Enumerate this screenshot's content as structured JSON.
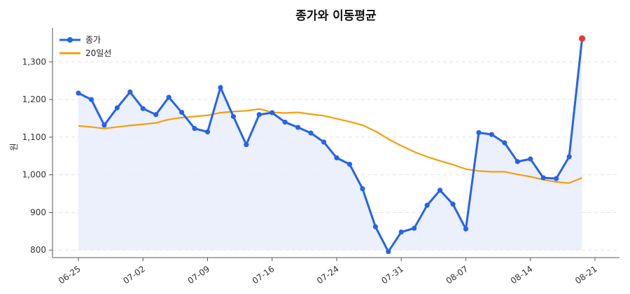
{
  "chart_data": {
    "type": "line",
    "title": "종가와 이동평균",
    "ylabel": "원",
    "xlabel": "",
    "ylim": [
      780,
      1390
    ],
    "yticks": [
      800,
      900,
      1000,
      1100,
      1200,
      1300
    ],
    "ytick_labels": [
      "800",
      "900",
      "1,000",
      "1,100",
      "1,200",
      "1,300"
    ],
    "x_tick_labels": [
      "06-25",
      "07-02",
      "07-09",
      "07-16",
      "07-24",
      "07-31",
      "08-07",
      "08-14",
      "08-21"
    ],
    "x_tick_indices": [
      0,
      5,
      10,
      15,
      20,
      25,
      30,
      35,
      40
    ],
    "grid": true,
    "legend_position": "top-left",
    "colors": {
      "close": "#2563eb",
      "ma20": "#f59e0b",
      "fill": "#e8edfb",
      "highlight": "#e53935"
    },
    "series": [
      {
        "name": "종가",
        "values": [
          1217,
          1200,
          1132,
          1178,
          1220,
          1176,
          1160,
          1206,
          1166,
          1123,
          1114,
          1232,
          1155,
          1080,
          1160,
          1165,
          1140,
          1126,
          1111,
          1087,
          1045,
          1028,
          963,
          862,
          796,
          848,
          858,
          919,
          959,
          922,
          856,
          1112,
          1107,
          1085,
          1035,
          1042,
          992,
          990,
          1048,
          1362
        ]
      },
      {
        "name": "20일선",
        "values": [
          1130,
          1127,
          1123,
          1127,
          1131,
          1134,
          1138,
          1147,
          1152,
          1155,
          1158,
          1165,
          1168,
          1170,
          1175,
          1166,
          1164,
          1166,
          1161,
          1157,
          1149,
          1141,
          1132,
          1116,
          1095,
          1077,
          1061,
          1048,
          1037,
          1027,
          1015,
          1010,
          1008,
          1008,
          1001,
          995,
          987,
          981,
          978,
          992
        ]
      }
    ]
  }
}
